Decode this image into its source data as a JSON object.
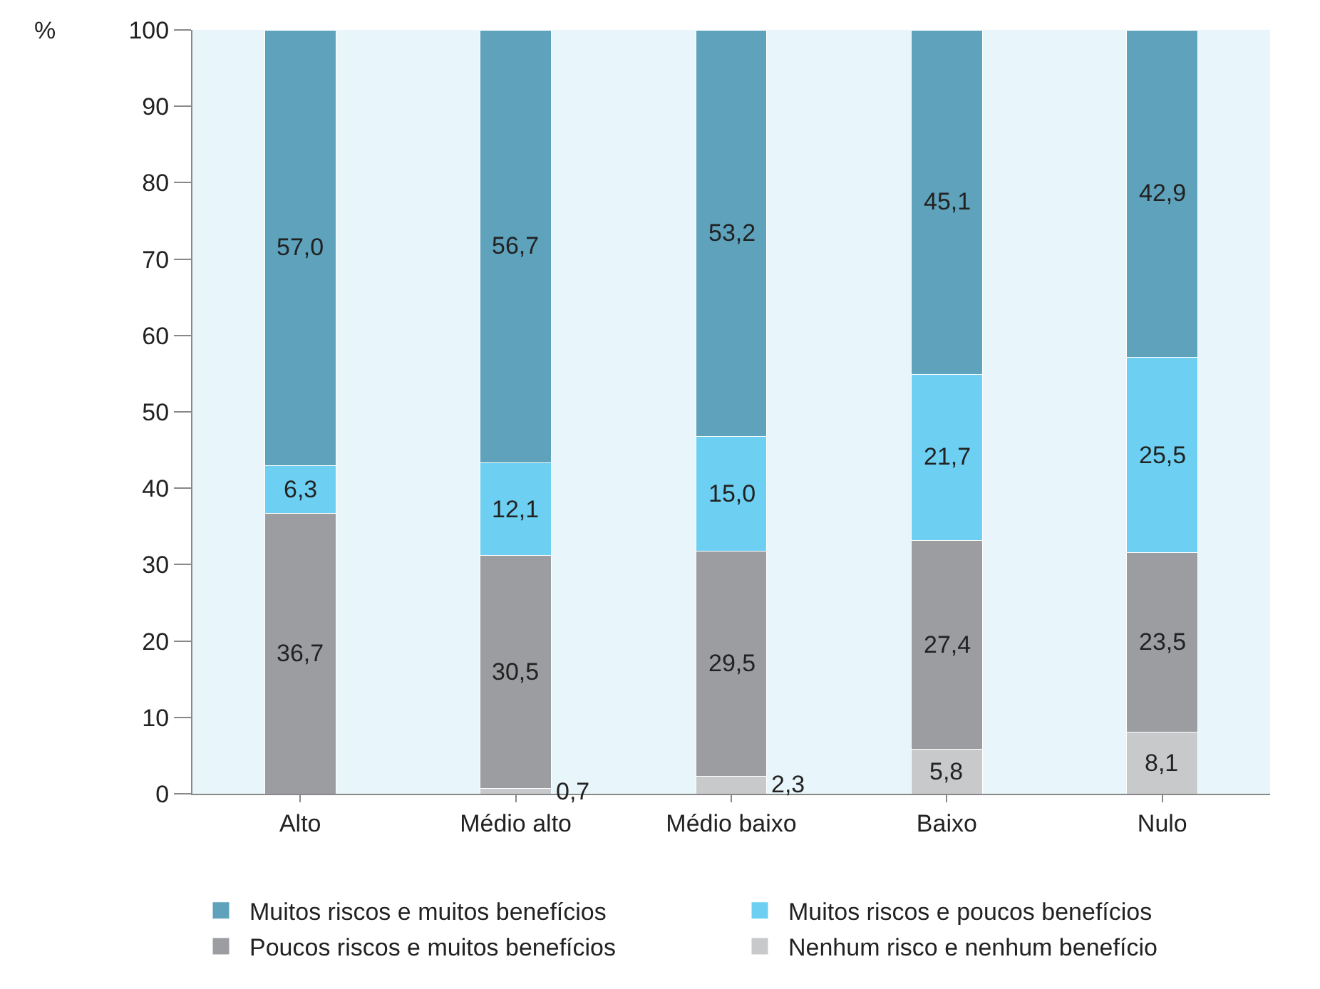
{
  "chart_data": {
    "type": "bar",
    "stacked": true,
    "ylabel": "%",
    "categories": [
      "Alto",
      "Médio alto",
      "Médio baixo",
      "Baixo",
      "Nulo"
    ],
    "series": [
      {
        "name": "Nenhum risco e nenhum benefício",
        "color": "#c8c9cb",
        "values": [
          null,
          0.7,
          2.3,
          5.8,
          8.1
        ],
        "value_labels": [
          null,
          "0,7",
          "2,3",
          "5,8",
          "8,1"
        ]
      },
      {
        "name": "Poucos riscos e muitos benefícios",
        "color": "#9c9da1",
        "values": [
          36.7,
          30.5,
          29.5,
          27.4,
          23.5
        ],
        "value_labels": [
          "36,7",
          "30,5",
          "29,5",
          "27,4",
          "23,5"
        ]
      },
      {
        "name": "Muitos riscos e poucos benefícios",
        "color": "#6dd0f2",
        "values": [
          6.3,
          12.1,
          15.0,
          21.7,
          25.5
        ],
        "value_labels": [
          "6,3",
          "12,1",
          "15,0",
          "21,7",
          "25,5"
        ]
      },
      {
        "name": "Muitos riscos e muitos benefícios",
        "color": "#5ea2bc",
        "values": [
          57.0,
          56.7,
          53.2,
          45.1,
          42.9
        ],
        "value_labels": [
          "57,0",
          "56,7",
          "53,2",
          "45,1",
          "42,9"
        ]
      }
    ],
    "ylim": [
      0,
      100
    ],
    "yticks": [
      0,
      10,
      20,
      30,
      40,
      50,
      60,
      70,
      80,
      90,
      100
    ],
    "grid": false,
    "legend": "bottom"
  }
}
